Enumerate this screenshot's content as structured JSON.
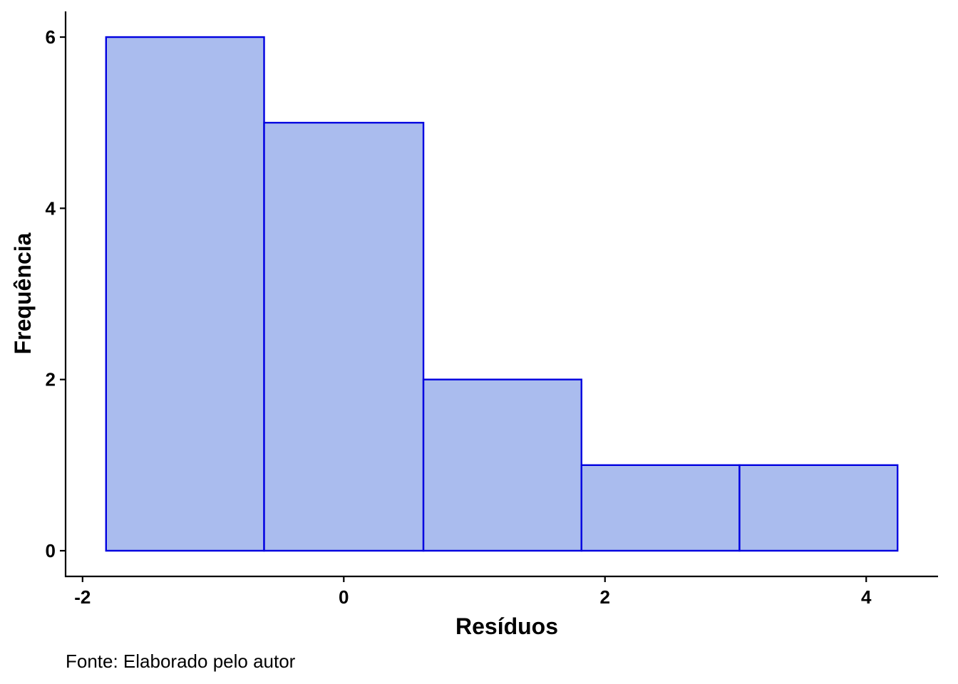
{
  "chart_data": {
    "type": "bar",
    "subtype": "histogram",
    "bins": [
      {
        "x0": -1.82,
        "x1": -0.61,
        "count": 6
      },
      {
        "x0": -0.61,
        "x1": 0.61,
        "count": 5
      },
      {
        "x0": 0.61,
        "x1": 1.82,
        "count": 2
      },
      {
        "x0": 1.82,
        "x1": 3.03,
        "count": 1
      },
      {
        "x0": 3.03,
        "x1": 4.24,
        "count": 1
      }
    ],
    "xlabel": "Resíduos",
    "ylabel": "Frequência",
    "xlim": [
      -2.13,
      4.55
    ],
    "ylim": [
      -0.3,
      6.3
    ],
    "xticks": [
      -2,
      0,
      2,
      4
    ],
    "xtick_labels": [
      "-2",
      "0",
      "2",
      "4"
    ],
    "yticks": [
      0,
      2,
      4,
      6
    ],
    "ytick_labels": [
      "0",
      "2",
      "4",
      "6"
    ],
    "grid": false,
    "legend": "none",
    "caption": "Fonte: Elaborado pelo autor",
    "colors": {
      "bar_fill": "#aabcee",
      "bar_stroke": "#0000e0"
    }
  }
}
